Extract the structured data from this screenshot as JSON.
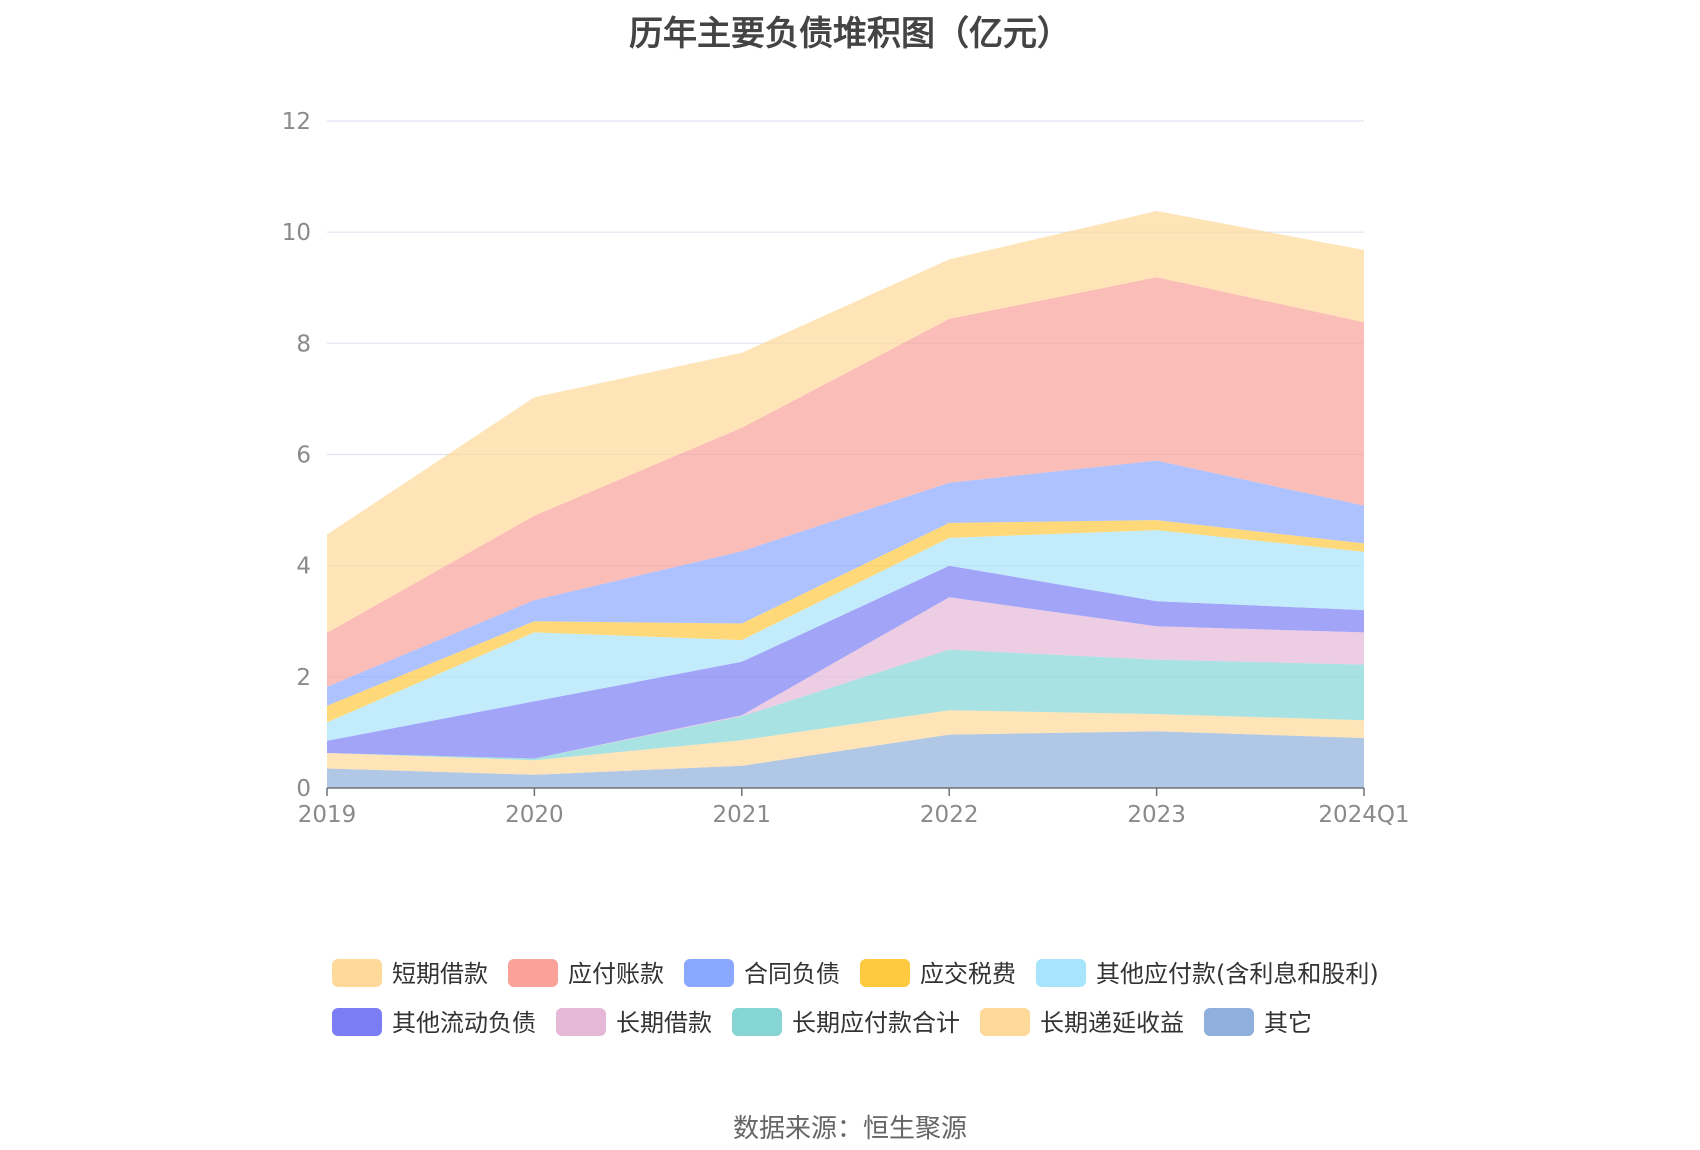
{
  "chart_data": {
    "type": "area",
    "stacked": true,
    "title": "历年主要负债堆积图（亿元）",
    "xlabel": "",
    "ylabel": "",
    "categories": [
      "2019",
      "2020",
      "2021",
      "2022",
      "2023",
      "2024Q1"
    ],
    "ylim": [
      0,
      12
    ],
    "yticks": [
      "0",
      "2",
      "4",
      "6",
      "8",
      "10",
      "12"
    ],
    "grid": true,
    "legend_position": "bottom",
    "series": [
      {
        "name": "其它",
        "color": "#8fb0dc",
        "values": [
          0.35,
          0.24,
          0.4,
          0.96,
          1.02,
          0.9
        ]
      },
      {
        "name": "长期递延收益",
        "color": "#ffd999",
        "values": [
          0.28,
          0.26,
          0.46,
          0.44,
          0.31,
          0.32
        ]
      },
      {
        "name": "长期应付款合计",
        "color": "#85d5d5",
        "values": [
          0.0,
          0.03,
          0.43,
          1.09,
          0.98,
          1.0
        ]
      },
      {
        "name": "长期借款",
        "color": "#e6b8d8",
        "values": [
          0.0,
          0.0,
          0.02,
          0.94,
          0.6,
          0.58
        ]
      },
      {
        "name": "其他流动负债",
        "color": "#7b7df5",
        "values": [
          0.22,
          1.03,
          0.96,
          0.57,
          0.45,
          0.4
        ]
      },
      {
        "name": "其他应付款(含利息和股利)",
        "color": "#a8e4fb",
        "values": [
          0.33,
          1.24,
          0.39,
          0.5,
          1.28,
          1.05
        ]
      },
      {
        "name": "应交税费",
        "color": "#ffc940",
        "values": [
          0.3,
          0.2,
          0.3,
          0.27,
          0.18,
          0.15
        ]
      },
      {
        "name": "合同负债",
        "color": "#8aa8ff",
        "values": [
          0.34,
          0.38,
          1.3,
          0.72,
          1.07,
          0.68
        ]
      },
      {
        "name": "应付账款",
        "color": "#faa19a",
        "values": [
          0.97,
          1.52,
          2.22,
          2.95,
          3.3,
          3.3
        ]
      },
      {
        "name": "短期借款",
        "color": "#ffd999",
        "values": [
          1.77,
          2.13,
          1.35,
          1.07,
          1.19,
          1.3
        ]
      }
    ],
    "legend_order": [
      "短期借款",
      "应付账款",
      "合同负债",
      "应交税费",
      "其他应付款(含利息和股利)",
      "其他流动负债",
      "长期借款",
      "长期应付款合计",
      "长期递延收益",
      "其它"
    ]
  },
  "source_text": "数据来源：恒生聚源"
}
